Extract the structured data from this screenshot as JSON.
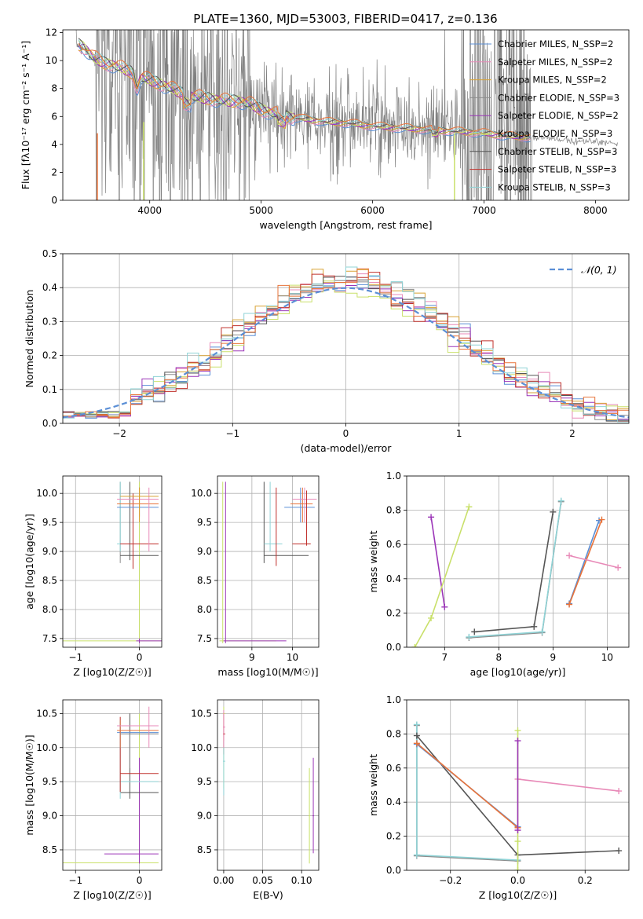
{
  "figure": {
    "title": "PLATE=1360, MJD=53003, FIBERID=0417, z=0.136"
  },
  "colors": {
    "Chabrier MILES": "#5b8fd6",
    "Salpeter MILES": "#e88ab8",
    "Kroupa MILES": "#d8a233",
    "Chabrier ELODIE": "#8c8c8c",
    "Salpeter ELODIE": "#9b35b8",
    "Kroupa ELODIE": "#c9e06a",
    "Chabrier STELIB": "#555555",
    "Salpeter STELIB": "#c0302b",
    "Kroupa STELIB": "#8fd3d6",
    "orange_fit": "#e8733a",
    "spectrum": "#808080",
    "normal_curve": "#5b8fd6"
  },
  "chart_data": [
    {
      "id": "spectrum",
      "type": "line",
      "title": "PLATE=1360, MJD=53003, FIBERID=0417, z=0.136",
      "xlabel": "wavelength [Angstrom, rest frame]",
      "ylabel": "Flux [fλ10⁻¹⁷ erg cm⁻² s⁻¹ A⁻¹]",
      "xlim": [
        3220,
        8300
      ],
      "ylim": [
        0,
        12.2
      ],
      "xticks": [
        4000,
        5000,
        6000,
        7000,
        8000
      ],
      "yticks": [
        0,
        2,
        4,
        6,
        8,
        10,
        12
      ],
      "grid": false,
      "legend_position": "top-right",
      "legend": [
        "Chabrier MILES, N_SSP=2",
        "Salpeter MILES, N_SSP=2",
        "Kroupa MILES, N_SSP=2",
        "Chabrier ELODIE, N_SSP=3",
        "Salpeter ELODIE, N_SSP=2",
        "Kroupa ELODIE, N_SSP=3",
        "Chabrier STELIB, N_SSP=3",
        "Salpeter STELIB, N_SSP=3",
        "Kroupa STELIB, N_SSP=3"
      ],
      "model_continuum": {
        "x": [
          3350,
          3400,
          3500,
          3600,
          3700,
          3800,
          3900,
          4000,
          4100,
          4200,
          4300,
          4400,
          4500,
          4600,
          4700,
          4800,
          4900,
          5000,
          5200,
          5400,
          5600,
          5800,
          6000,
          6200,
          6400,
          6600,
          6800,
          7000,
          7200,
          7400,
          7600,
          7800,
          8000,
          8200
        ],
        "y": [
          11.2,
          11.0,
          10.2,
          9.8,
          9.6,
          9.3,
          8.9,
          8.6,
          8.3,
          8.0,
          7.6,
          7.4,
          7.3,
          7.2,
          7.1,
          7.1,
          6.9,
          6.5,
          6.0,
          5.8,
          5.6,
          5.5,
          5.3,
          5.2,
          5.1,
          5.0,
          4.9,
          4.8,
          4.6,
          4.5,
          4.4,
          4.3,
          4.2,
          4.0
        ]
      }
    },
    {
      "id": "residuals",
      "type": "histogram",
      "xlabel": "(data-model)/error",
      "ylabel": "Normed distribution",
      "xlim": [
        -2.5,
        2.5
      ],
      "ylim": [
        0,
        0.5
      ],
      "xticks": [
        -2,
        -1,
        0,
        1,
        2
      ],
      "yticks": [
        0.0,
        0.1,
        0.2,
        0.3,
        0.4,
        0.5
      ],
      "grid": true,
      "legend_position": "top-right",
      "legend": [
        "𝒩(0, 1)"
      ],
      "bin_width": 0.1
    },
    {
      "id": "age_Z",
      "type": "errorbar",
      "xlabel": "Z [log10(Z/Z☉)]",
      "ylabel": "age  [log10(age/yr)]",
      "xlim": [
        -1.2,
        0.35
      ],
      "ylim": [
        7.35,
        10.3
      ],
      "xticks": [
        -1,
        0
      ],
      "yticks": [
        7.5,
        8.0,
        8.5,
        9.0,
        9.5,
        10.0
      ],
      "grid": true
    },
    {
      "id": "age_mass",
      "type": "errorbar",
      "xlabel": "mass [log10(M/M☉)]",
      "ylabel": "",
      "xlim": [
        8.15,
        10.65
      ],
      "ylim": [
        7.35,
        10.3
      ],
      "xticks": [
        9,
        10
      ],
      "yticks": [
        7.5,
        8.0,
        8.5,
        9.0,
        9.5,
        10.0
      ],
      "grid": true
    },
    {
      "id": "weight_age",
      "type": "line",
      "xlabel": "age  [log10(age/yr)]",
      "ylabel": "mass weight",
      "xlim": [
        6.3,
        10.4
      ],
      "ylim": [
        0,
        1
      ],
      "xticks": [
        7,
        8,
        9,
        10
      ],
      "yticks": [
        0.0,
        0.2,
        0.4,
        0.6,
        0.8,
        1.0
      ],
      "grid": true,
      "series": [
        {
          "color": "#9b35b8",
          "x": [
            6.75,
            7.0
          ],
          "y": [
            0.76,
            0.235
          ]
        },
        {
          "color": "#c9e06a",
          "x": [
            6.45,
            6.75,
            7.45
          ],
          "y": [
            0.0,
            0.17,
            0.82
          ]
        },
        {
          "color": "#555555",
          "x": [
            7.55,
            8.65,
            9.0
          ],
          "y": [
            0.09,
            0.12,
            0.79
          ]
        },
        {
          "color": "#8c8c8c",
          "x": [
            7.45,
            8.8,
            9.15
          ],
          "y": [
            0.055,
            0.085,
            0.85
          ]
        },
        {
          "color": "#8fd3d6",
          "x": [
            7.45,
            8.8,
            9.15
          ],
          "y": [
            0.06,
            0.09,
            0.855
          ]
        },
        {
          "color": "#5b8fd6",
          "x": [
            9.3,
            9.85
          ],
          "y": [
            0.255,
            0.74
          ]
        },
        {
          "color": "#e8733a",
          "x": [
            9.3,
            9.9
          ],
          "y": [
            0.25,
            0.745
          ]
        },
        {
          "color": "#e88ab8",
          "x": [
            9.3,
            10.2
          ],
          "y": [
            0.535,
            0.465
          ]
        }
      ]
    },
    {
      "id": "mass_Z",
      "type": "errorbar",
      "xlabel": "Z [log10(Z/Z☉)]",
      "ylabel": "mass [log10(M/M☉)]",
      "xlim": [
        -1.2,
        0.35
      ],
      "ylim": [
        8.2,
        10.7
      ],
      "xticks": [
        -1,
        0
      ],
      "yticks": [
        8.5,
        9.0,
        9.5,
        10.0,
        10.5
      ],
      "grid": true
    },
    {
      "id": "mass_EBV",
      "type": "errorbar",
      "xlabel": "E(B-V)",
      "ylabel": "",
      "xlim": [
        -0.008,
        0.122
      ],
      "ylim": [
        8.2,
        10.7
      ],
      "xticks": [
        0.0,
        0.05,
        0.1
      ],
      "xticklabels": [
        "0.00",
        "0.05",
        "0.10"
      ],
      "yticks": [
        8.5,
        9.0,
        9.5,
        10.0,
        10.5
      ],
      "grid": true
    },
    {
      "id": "weight_Z",
      "type": "line",
      "xlabel": "Z [log10(Z/Z☉)]",
      "ylabel": "mass weight",
      "xlim": [
        -0.33,
        0.33
      ],
      "ylim": [
        0,
        1
      ],
      "xticks": [
        -0.2,
        0.0,
        0.2
      ],
      "xticklabels": [
        "−0.2",
        "0.0",
        "0.2"
      ],
      "yticks": [
        0.0,
        0.2,
        0.4,
        0.6,
        0.8,
        1.0
      ],
      "grid": true,
      "series": [
        {
          "color": "#8c8c8c",
          "x": [
            -0.3,
            -0.3,
            0.0
          ],
          "y": [
            0.85,
            0.085,
            0.055
          ]
        },
        {
          "color": "#8fd3d6",
          "x": [
            -0.3,
            -0.3,
            0.0
          ],
          "y": [
            0.855,
            0.09,
            0.06
          ]
        },
        {
          "color": "#555555",
          "x": [
            -0.3,
            0.0,
            0.3
          ],
          "y": [
            0.79,
            0.09,
            0.115
          ]
        },
        {
          "color": "#5b8fd6",
          "x": [
            -0.3,
            0.0
          ],
          "y": [
            0.74,
            0.255
          ]
        },
        {
          "color": "#e8733a",
          "x": [
            -0.3,
            0.0
          ],
          "y": [
            0.745,
            0.25
          ]
        },
        {
          "color": "#e88ab8",
          "x": [
            0.0,
            0.3
          ],
          "y": [
            0.535,
            0.465
          ]
        },
        {
          "color": "#c9e06a",
          "x": [
            0.0,
            0.0,
            0.0
          ],
          "y": [
            0.82,
            0.17,
            0.0
          ]
        },
        {
          "color": "#9b35b8",
          "x": [
            0.0,
            0.0
          ],
          "y": [
            0.76,
            0.235
          ]
        }
      ]
    }
  ]
}
